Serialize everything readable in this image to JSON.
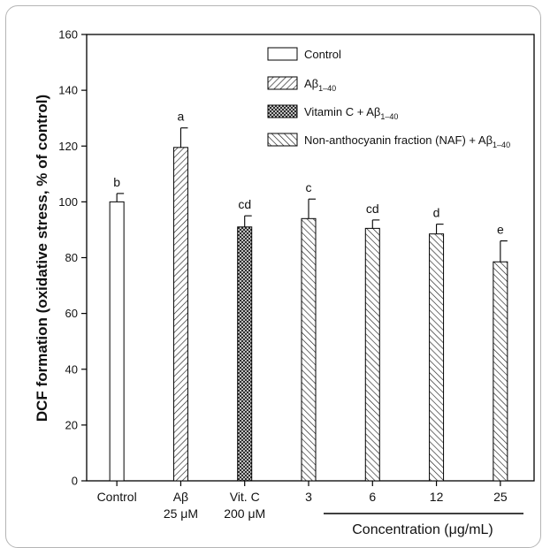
{
  "chart_data": {
    "type": "bar",
    "ylabel": "DCF formation (oxidative stress, % of control)",
    "xlabel": "",
    "ylim": [
      0,
      160
    ],
    "yticks": [
      0,
      20,
      40,
      60,
      80,
      100,
      120,
      140,
      160
    ],
    "grid": false,
    "legend_position": "top-right",
    "categories": [
      {
        "line1": "Control",
        "line2": ""
      },
      {
        "line1": "Aβ",
        "line2": "25 μM"
      },
      {
        "line1": "Vit. C",
        "line2": "200 μM"
      },
      {
        "line1": "3",
        "line2": ""
      },
      {
        "line1": "6",
        "line2": ""
      },
      {
        "line1": "12",
        "line2": ""
      },
      {
        "line1": "25",
        "line2": ""
      }
    ],
    "values": [
      100,
      119.5,
      91,
      94,
      90.5,
      88.5,
      78.5
    ],
    "errors": [
      3,
      7,
      4,
      7,
      3,
      3.5,
      7.5
    ],
    "significance": [
      "b",
      "a",
      "cd",
      "c",
      "cd",
      "d",
      "e"
    ],
    "bar_series": [
      0,
      1,
      2,
      3,
      3,
      3,
      3
    ],
    "concentration_label": "Concentration (μg/mL)",
    "legend": [
      {
        "text": "Control",
        "sub": "",
        "pattern": "empty"
      },
      {
        "text": "Aβ",
        "sub": "1–40",
        "pattern": "hatch-right"
      },
      {
        "text": "Vitamin C  + Aβ",
        "sub": "1–40",
        "pattern": "crosshatch"
      },
      {
        "text": "Non-anthocyanin fraction (NAF) + Aβ",
        "sub": "1–40",
        "pattern": "hatch-left"
      }
    ]
  }
}
